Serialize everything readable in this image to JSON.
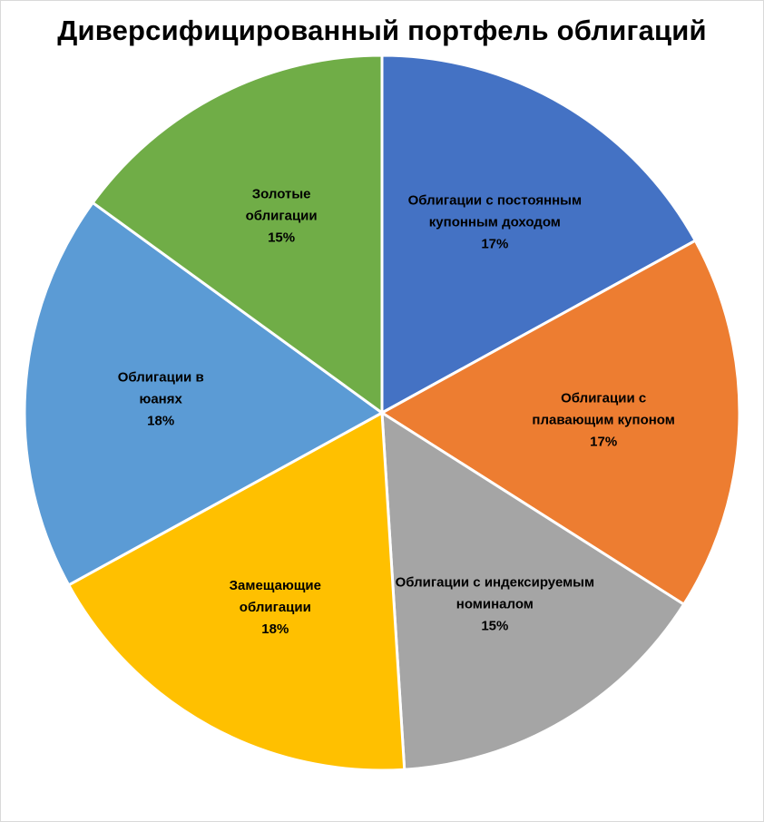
{
  "chart_data": {
    "type": "pie",
    "title": "Диверсифицированный портфель облигаций",
    "slices": [
      {
        "label_lines": [
          "Облигации с постоянным",
          "купонным доходом"
        ],
        "percent_label": "17%",
        "value": 17,
        "color": "#4472C4"
      },
      {
        "label_lines": [
          "Облигации с",
          "плавающим купоном"
        ],
        "percent_label": "17%",
        "value": 17,
        "color": "#ED7D31"
      },
      {
        "label_lines": [
          "Облигации с индексируемым",
          "номиналом"
        ],
        "percent_label": "15%",
        "value": 15,
        "color": "#A5A5A5"
      },
      {
        "label_lines": [
          "Замещающие",
          "облигации"
        ],
        "percent_label": "18%",
        "value": 18,
        "color": "#FFC000"
      },
      {
        "label_lines": [
          "Облигации в",
          "юанях"
        ],
        "percent_label": "18%",
        "value": 18,
        "color": "#5B9BD5"
      },
      {
        "label_lines": [
          "Золотые",
          "облигации"
        ],
        "percent_label": "15%",
        "value": 15,
        "color": "#70AD47"
      }
    ]
  }
}
